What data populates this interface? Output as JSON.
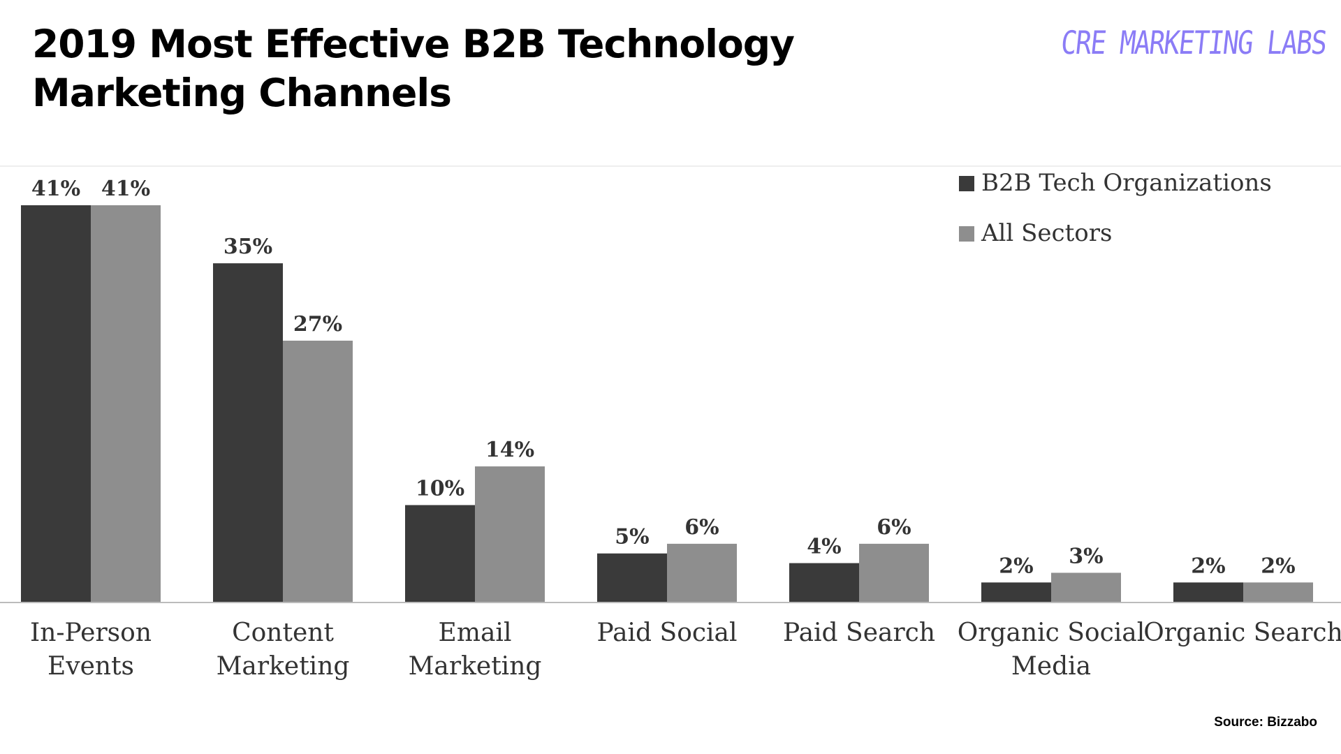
{
  "header": {
    "title_line1": "2019 Most Effective B2B Technology",
    "title_line2": "Marketing Channels",
    "brand": "CRE MARKETING LABS"
  },
  "footer": {
    "source": "Source: Bizzabo"
  },
  "colors": {
    "series1": "#3a3a3a",
    "series2": "#8e8e8e",
    "brand": "#8b7cf6"
  },
  "chart_data": {
    "type": "bar",
    "categories": [
      [
        "In-Person",
        "Events"
      ],
      [
        "Content",
        "Marketing"
      ],
      [
        "Email",
        "Marketing"
      ],
      [
        "Paid Social"
      ],
      [
        "Paid Search"
      ],
      [
        "Organic Social",
        "Media"
      ],
      [
        "Organic Search"
      ]
    ],
    "series": [
      {
        "name": "B2B Tech Organizations",
        "values": [
          41,
          35,
          10,
          5,
          4,
          2,
          2
        ]
      },
      {
        "name": "All Sectors",
        "values": [
          41,
          27,
          14,
          6,
          6,
          3,
          2
        ]
      }
    ],
    "value_suffix": "%",
    "ylim": [
      0,
      41
    ],
    "grid": false,
    "legend": "top-right"
  }
}
